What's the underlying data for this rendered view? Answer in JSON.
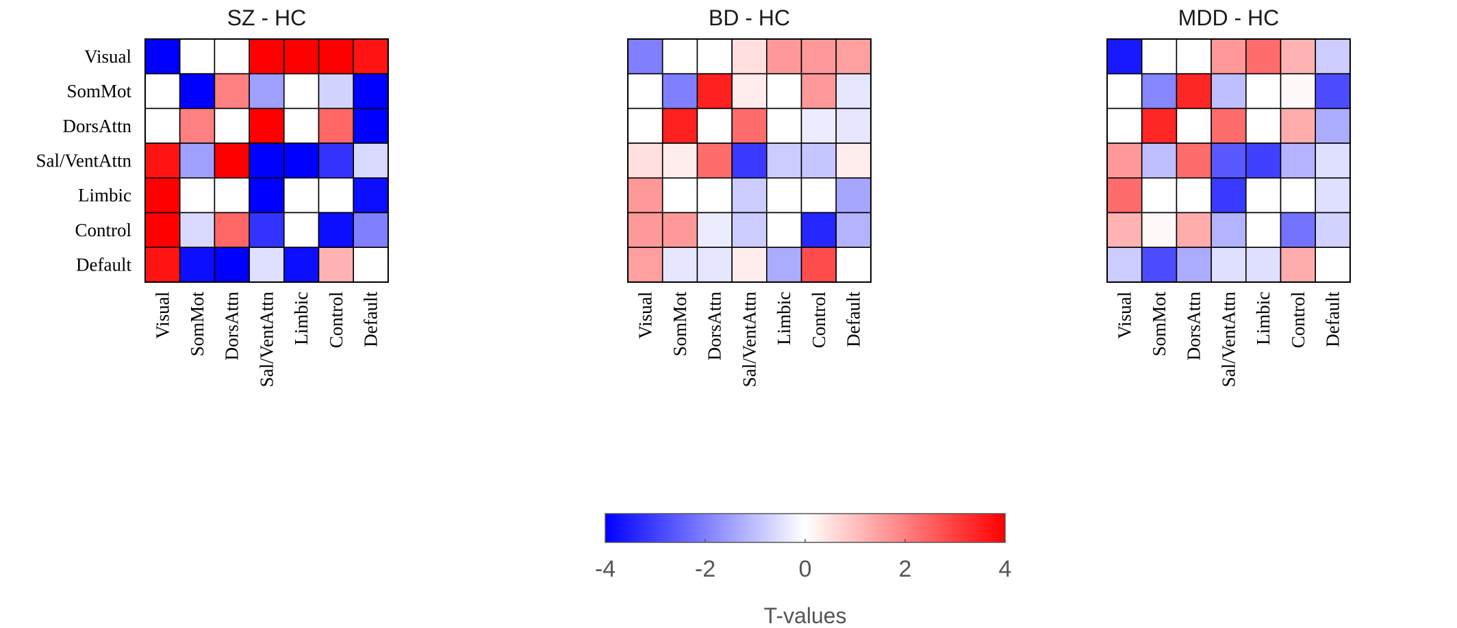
{
  "chart_data": {
    "type": "heatmap",
    "networks": [
      "Visual",
      "SomMot",
      "DorsAttn",
      "Sal/VentAttn",
      "Limbic",
      "Control",
      "Default"
    ],
    "panels": [
      {
        "title": "SZ - HC",
        "values": [
          [
            -4.0,
            0.0,
            0.0,
            4.0,
            4.0,
            4.0,
            3.7
          ],
          [
            0.0,
            -4.0,
            2.0,
            -1.5,
            0.0,
            -0.7,
            -4.0
          ],
          [
            0.0,
            2.0,
            0.0,
            4.0,
            0.0,
            2.4,
            -4.0
          ],
          [
            3.7,
            -1.5,
            4.0,
            -4.0,
            -4.0,
            -3.2,
            -0.6
          ],
          [
            4.0,
            0.0,
            0.0,
            -4.0,
            0.0,
            0.0,
            -3.8
          ],
          [
            4.0,
            -0.6,
            2.4,
            -3.2,
            0.0,
            -3.8,
            -2.0
          ],
          [
            3.7,
            -3.8,
            -4.0,
            -0.5,
            -3.8,
            1.2,
            0.0
          ]
        ]
      },
      {
        "title": "BD - HC",
        "values": [
          [
            -2.0,
            0.0,
            0.0,
            0.5,
            1.6,
            1.6,
            1.5
          ],
          [
            0.0,
            -2.0,
            3.5,
            0.3,
            0.0,
            1.6,
            -0.4
          ],
          [
            0.0,
            3.5,
            0.0,
            2.3,
            0.0,
            -0.3,
            -0.4
          ],
          [
            0.5,
            0.3,
            2.3,
            -3.1,
            -0.8,
            -0.9,
            0.3
          ],
          [
            1.6,
            0.0,
            0.0,
            -0.8,
            0.0,
            0.0,
            -1.4
          ],
          [
            1.6,
            1.6,
            -0.3,
            -0.8,
            0.0,
            -3.4,
            -1.2
          ],
          [
            1.5,
            -0.4,
            -0.4,
            0.3,
            -1.3,
            2.8,
            0.0
          ]
        ]
      },
      {
        "title": "MDD - HC",
        "values": [
          [
            -3.6,
            0.0,
            0.0,
            1.6,
            2.3,
            1.2,
            -0.8
          ],
          [
            0.0,
            -1.9,
            3.4,
            -1.0,
            0.0,
            0.1,
            -2.8
          ],
          [
            0.0,
            3.4,
            0.0,
            2.3,
            0.0,
            1.3,
            -1.3
          ],
          [
            1.6,
            -1.0,
            2.3,
            -2.6,
            -3.0,
            -1.2,
            -0.5
          ],
          [
            2.3,
            0.0,
            0.0,
            -3.1,
            0.0,
            0.0,
            -0.5
          ],
          [
            1.2,
            0.1,
            1.3,
            -1.2,
            0.0,
            -2.2,
            -0.7
          ],
          [
            -0.8,
            -2.8,
            -1.3,
            -0.5,
            -0.5,
            1.3,
            0.0
          ]
        ]
      }
    ],
    "colorbar": {
      "min": -4,
      "max": 4,
      "ticks": [
        "-4",
        "-2",
        "0",
        "2",
        "4"
      ],
      "label": "T-values",
      "colors": {
        "low": "#0000ff",
        "mid": "#ffffff",
        "high": "#ff0000"
      }
    }
  }
}
